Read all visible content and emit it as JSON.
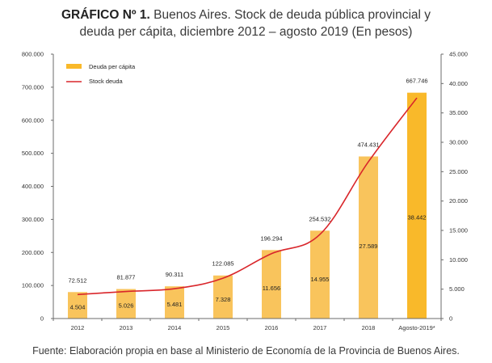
{
  "title": {
    "bold": "GRÁFICO Nº 1.",
    "line1": " Buenos Aires. Stock de deuda pública provincial y",
    "line2": "deuda per cápita, diciembre 2012 – agosto 2019 (En pesos)"
  },
  "source": "Fuente: Elaboración propia en base al Ministerio de Economía de la Provincia de Buenos Aires.",
  "chart_data": {
    "type": "bar",
    "title": "GRÁFICO Nº 1. Buenos Aires. Stock de deuda pública provincial y deuda per cápita, diciembre 2012 – agosto 2019 (En pesos)",
    "categories": [
      "2012",
      "2013",
      "2014",
      "2015",
      "2016",
      "2017",
      "2018",
      "Agosto-2019*"
    ],
    "series": [
      {
        "name": "Deuda per cápita",
        "type": "bar",
        "axis": "right",
        "color": "#F9C45C",
        "highlight_color": "#F9B92A",
        "values": [
          4504,
          5026,
          5481,
          7328,
          11656,
          14955,
          27589,
          38442
        ],
        "labels": [
          "4.504",
          "5.026",
          "5.481",
          "7.328",
          "11.656",
          "14.955",
          "27.589",
          "38.442"
        ]
      },
      {
        "name": "Stock deuda",
        "type": "line",
        "axis": "left",
        "color": "#D9262B",
        "values": [
          72512,
          81877,
          90311,
          122085,
          196294,
          254532,
          474431,
          667746
        ],
        "labels": [
          "72.512",
          "81.877",
          "90.311",
          "122.085",
          "196.294",
          "254.532",
          "474.431",
          "667.746"
        ]
      }
    ],
    "left_axis": {
      "ylim": [
        0,
        800000
      ],
      "ticks": [
        0,
        100000,
        200000,
        300000,
        400000,
        500000,
        600000,
        700000,
        800000
      ],
      "tick_labels": [
        "0",
        "100.000",
        "200.000",
        "300.000",
        "400.000",
        "500.000",
        "600.000",
        "700.000",
        "800.000"
      ]
    },
    "right_axis": {
      "ylim": [
        0,
        45000
      ],
      "ticks": [
        0,
        5000,
        10000,
        15000,
        20000,
        25000,
        30000,
        35000,
        40000,
        45000
      ],
      "tick_labels": [
        "0",
        "5.000",
        "10.000",
        "15.000",
        "20.000",
        "25.000",
        "30.000",
        "35.000",
        "40.000",
        "45.000"
      ]
    },
    "legend": {
      "position": "top-left",
      "entries": [
        "Deuda per cápita",
        "Stock deuda"
      ]
    },
    "grid": false,
    "xlabel": "",
    "ylabel": ""
  }
}
